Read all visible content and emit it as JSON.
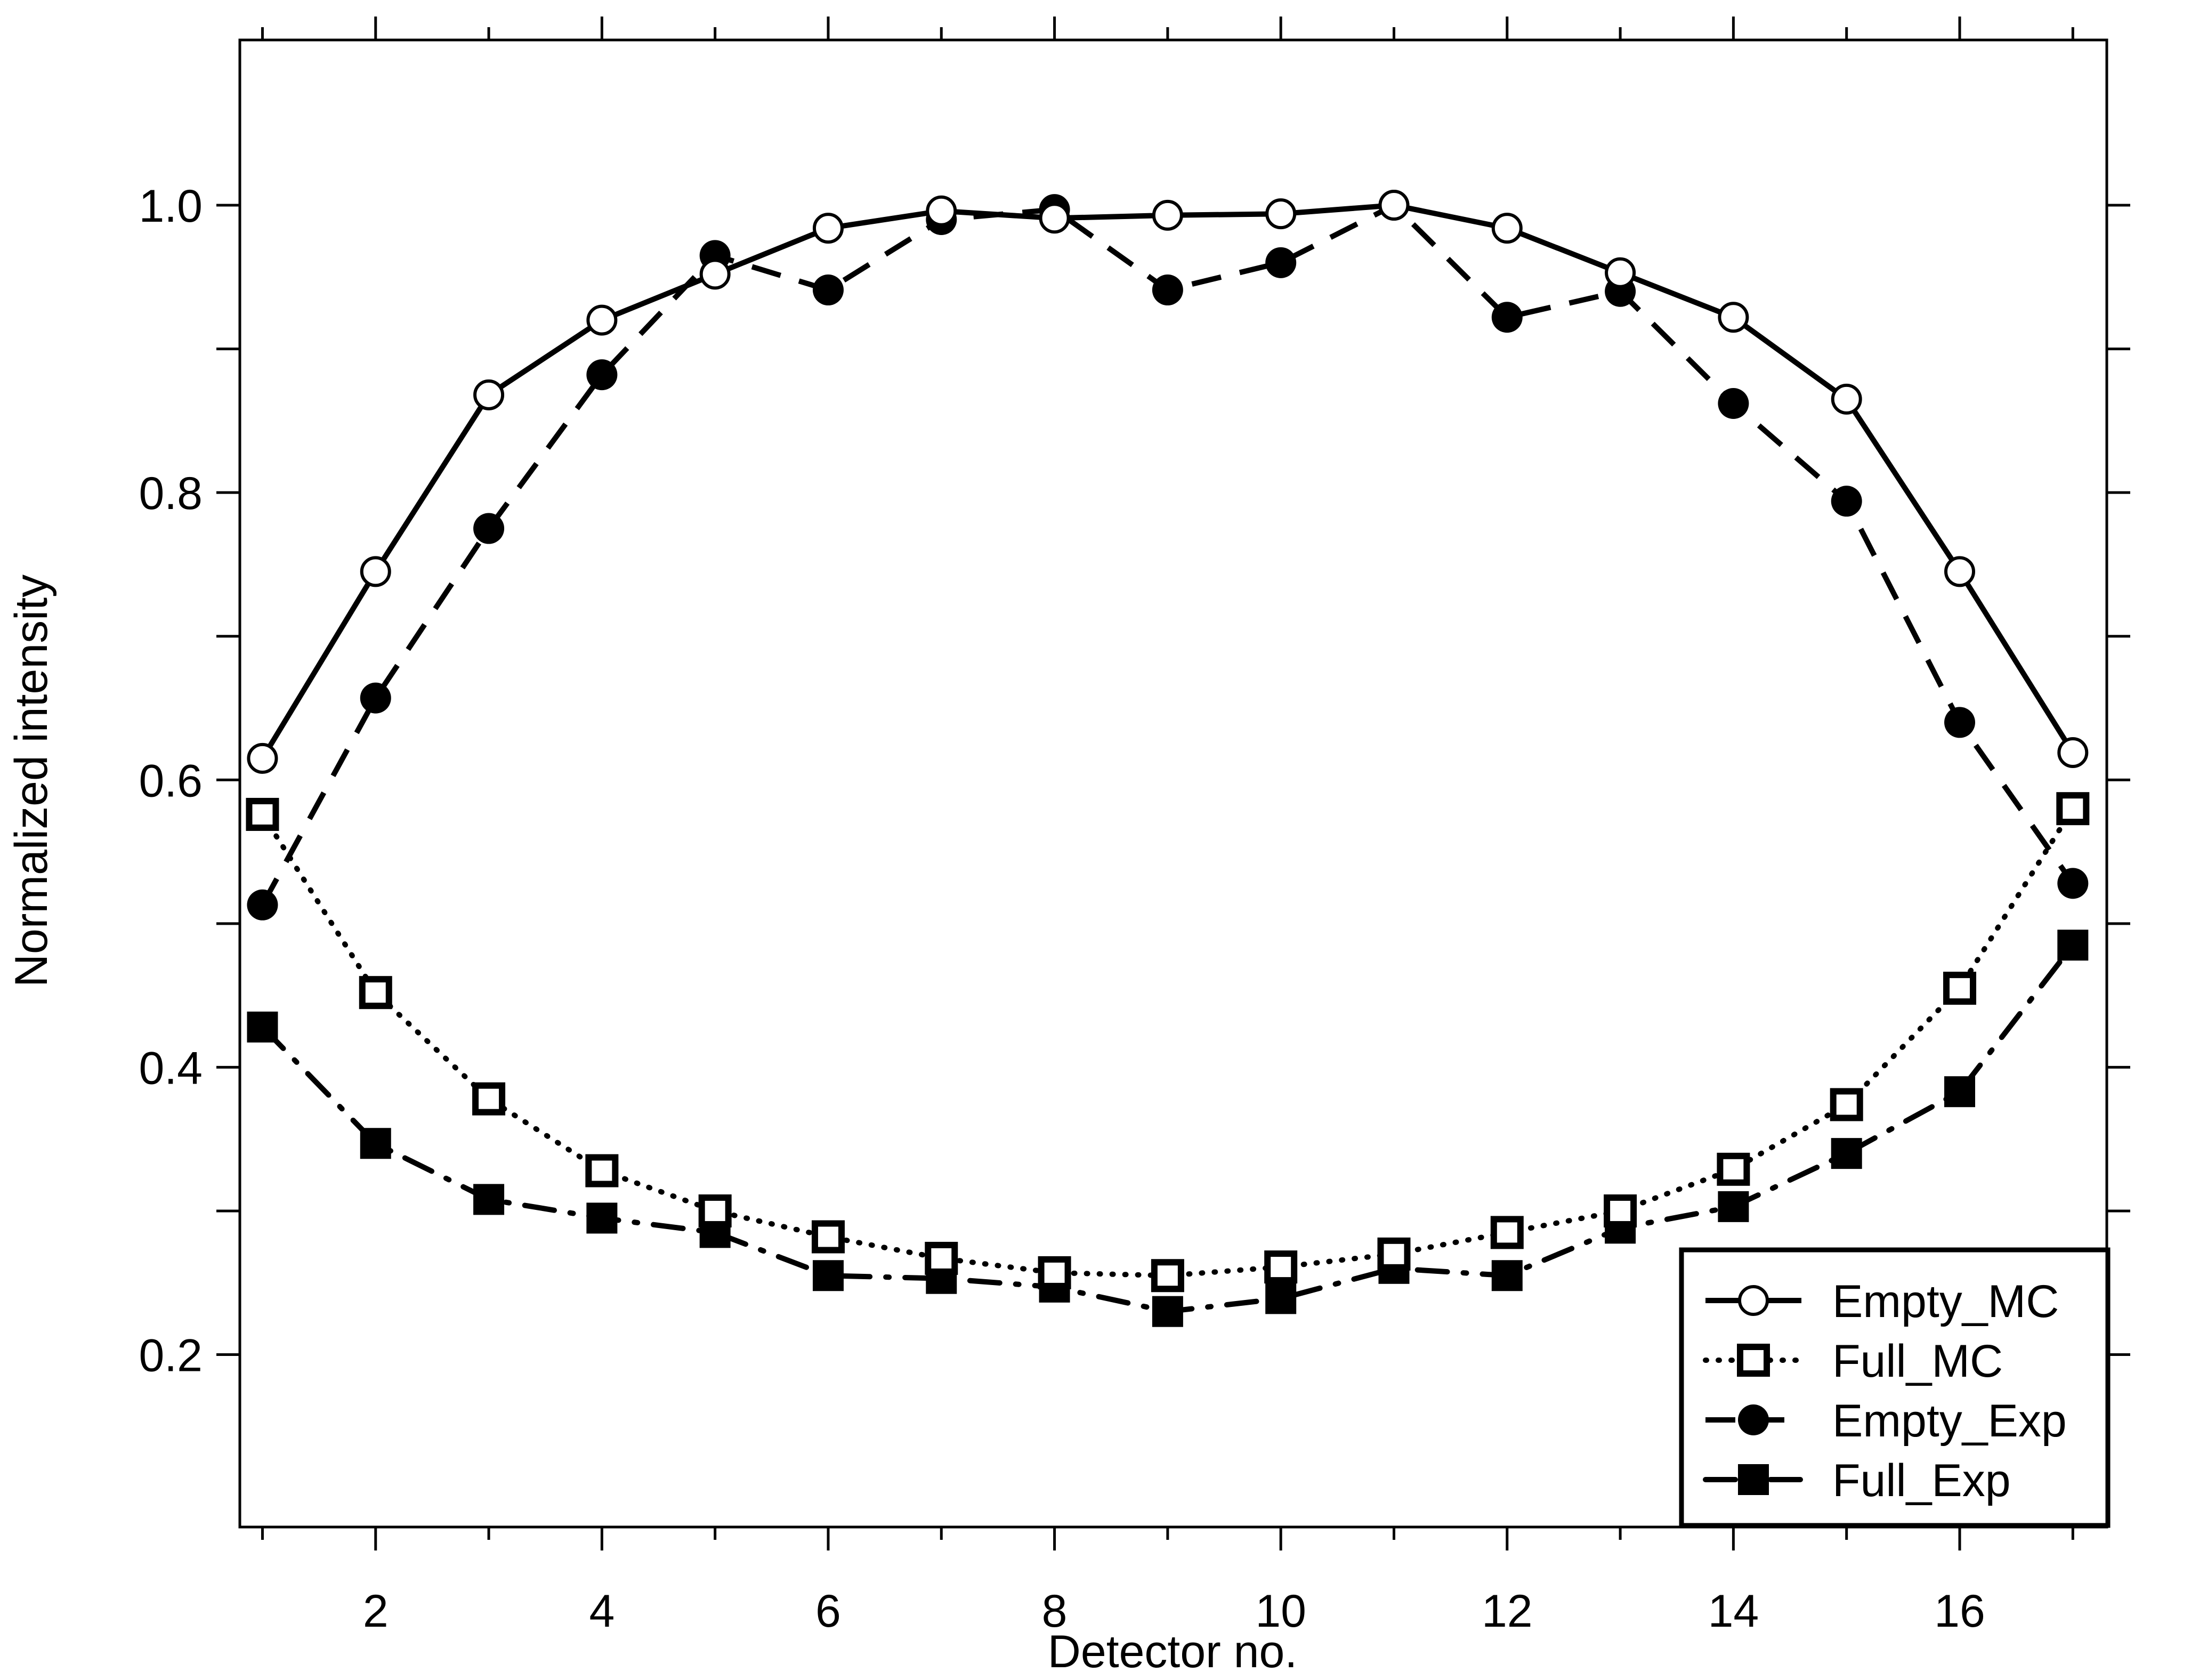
{
  "chart_data": {
    "type": "line",
    "title": "",
    "xlabel": "Detector no.",
    "ylabel": "Normalized intensity",
    "xlim": [
      0.8,
      17.3
    ],
    "ylim": [
      0.08,
      1.115
    ],
    "x": [
      1,
      2,
      3,
      4,
      5,
      6,
      7,
      8,
      9,
      10,
      11,
      12,
      13,
      14,
      15,
      16,
      17
    ],
    "x_ticks": [
      "2",
      "4",
      "6",
      "8",
      "10",
      "12",
      "14",
      "16"
    ],
    "y_ticks": [
      "0.2",
      "0.4",
      "0.6",
      "0.8",
      "1.0"
    ],
    "grid": false,
    "legend_position": "bottom-right",
    "series": [
      {
        "name": "Empty_MC",
        "line": "solid",
        "marker": "open-circle",
        "values": [
          0.615,
          0.745,
          0.868,
          0.92,
          0.952,
          0.984,
          0.996,
          0.991,
          0.993,
          0.994,
          1.0,
          0.984,
          0.953,
          0.922,
          0.865,
          0.745,
          0.619
        ]
      },
      {
        "name": "Full_MC",
        "line": "dotted",
        "marker": "open-square",
        "values": [
          0.576,
          0.452,
          0.378,
          0.328,
          0.3,
          0.282,
          0.267,
          0.257,
          0.255,
          0.261,
          0.27,
          0.285,
          0.3,
          0.329,
          0.374,
          0.455,
          0.58
        ]
      },
      {
        "name": "Empty_Exp",
        "line": "dashed",
        "marker": "filled-circle",
        "values": [
          0.513,
          0.657,
          0.775,
          0.882,
          0.965,
          0.941,
          0.99,
          0.997,
          0.941,
          0.96,
          1.0,
          0.922,
          0.94,
          0.862,
          0.794,
          0.64,
          0.528
        ]
      },
      {
        "name": "Full_Exp",
        "line": "dash-dot",
        "marker": "filled-square",
        "values": [
          0.428,
          0.347,
          0.308,
          0.295,
          0.285,
          0.255,
          0.253,
          0.247,
          0.23,
          0.239,
          0.26,
          0.255,
          0.288,
          0.303,
          0.34,
          0.383,
          0.485
        ]
      }
    ]
  }
}
